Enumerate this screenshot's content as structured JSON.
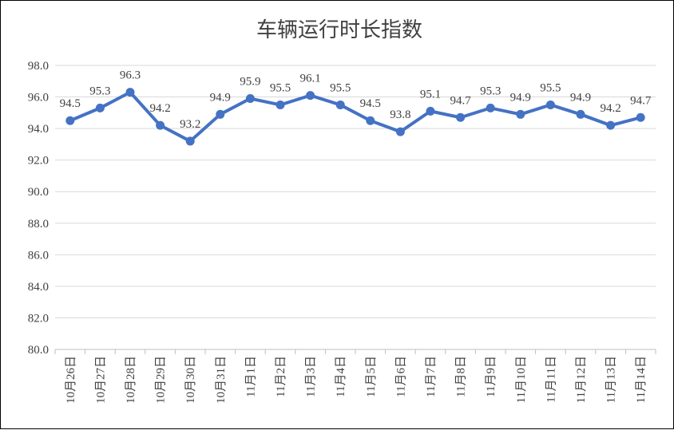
{
  "chart_data": {
    "type": "line",
    "title": "车辆运行时长指数",
    "xlabel": "",
    "ylabel": "",
    "categories": [
      "10月26日",
      "10月27日",
      "10月28日",
      "10月29日",
      "10月30日",
      "10月31日",
      "11月1日",
      "11月2日",
      "11月3日",
      "11月4日",
      "11月5日",
      "11月6日",
      "11月7日",
      "11月8日",
      "11月9日",
      "11月10日",
      "11月11日",
      "11月12日",
      "11月13日",
      "11月14日"
    ],
    "series": [
      {
        "values": [
          94.5,
          95.3,
          96.3,
          94.2,
          93.2,
          94.9,
          95.9,
          95.5,
          96.1,
          95.5,
          94.5,
          93.8,
          95.1,
          94.7,
          95.3,
          94.9,
          95.5,
          94.9,
          94.2,
          94.7
        ],
        "labels": [
          "94.5",
          "95.3",
          "96.3",
          "94.2",
          "93.2",
          "94.9",
          "95.9",
          "95.5",
          "96.1",
          "95.5",
          "94.5",
          "93.8",
          "95.1",
          "94.7",
          "95.3",
          "94.9",
          "95.5",
          "94.9",
          "94.2",
          "94.7"
        ],
        "color": "#4472c4"
      }
    ],
    "ylim": [
      80,
      98
    ],
    "yticks": [
      "80.0",
      "82.0",
      "84.0",
      "86.0",
      "88.0",
      "90.0",
      "92.0",
      "94.0",
      "96.0",
      "98.0"
    ],
    "grid": true,
    "legend": "none",
    "colors": {
      "line": "#4472c4",
      "grid": "#d9d9d9",
      "axis": "#bfbfbf",
      "text": "#404040"
    }
  }
}
